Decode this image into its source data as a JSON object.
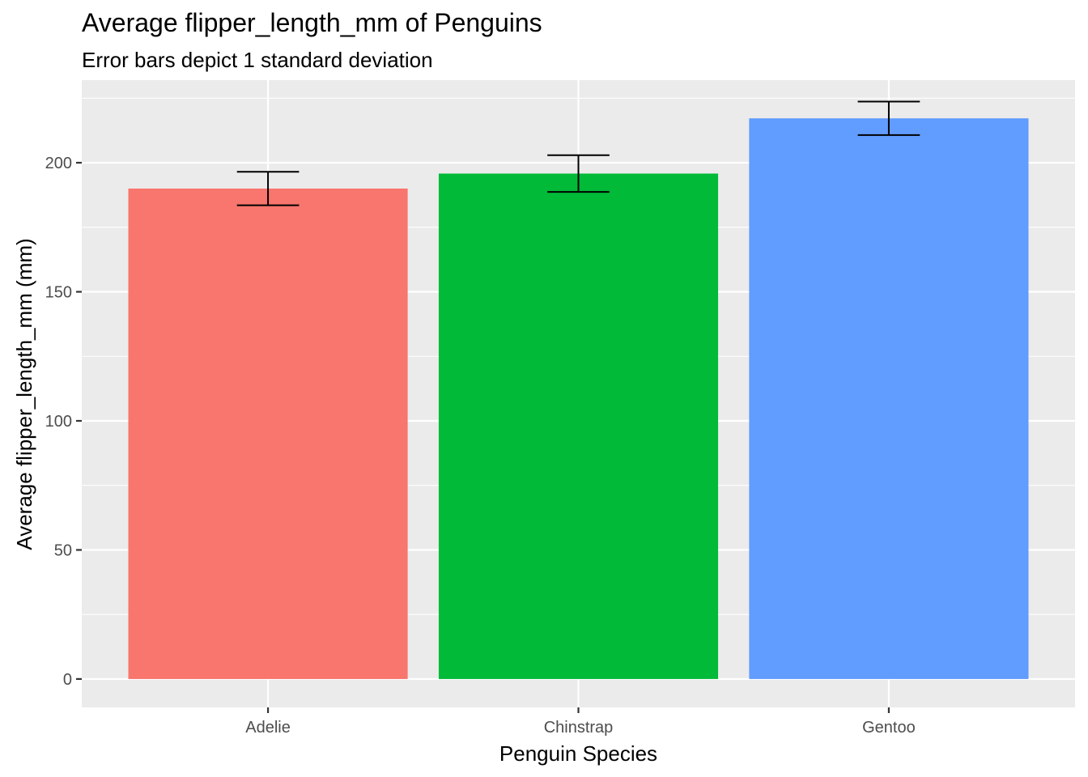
{
  "chart_data": {
    "type": "bar",
    "title": "Average flipper_length_mm of Penguins",
    "subtitle": "Error bars depict 1 standard deviation",
    "xlabel": "Penguin Species",
    "ylabel": "Average flipper_length_mm (mm)",
    "categories": [
      "Adelie",
      "Chinstrap",
      "Gentoo"
    ],
    "values": [
      190.0,
      195.8,
      217.2
    ],
    "error": [
      6.5,
      7.1,
      6.5
    ],
    "colors": [
      "#F8766D",
      "#00BA38",
      "#619CFF"
    ],
    "ylim": [
      -11,
      232
    ],
    "yticks": [
      0,
      50,
      100,
      150,
      200
    ],
    "ytick_labels": [
      "0",
      "50",
      "100",
      "150",
      "200"
    ],
    "grid": true,
    "panel_background": "#EBEBEB",
    "grid_color": "#FFFFFF",
    "legend": "none"
  }
}
